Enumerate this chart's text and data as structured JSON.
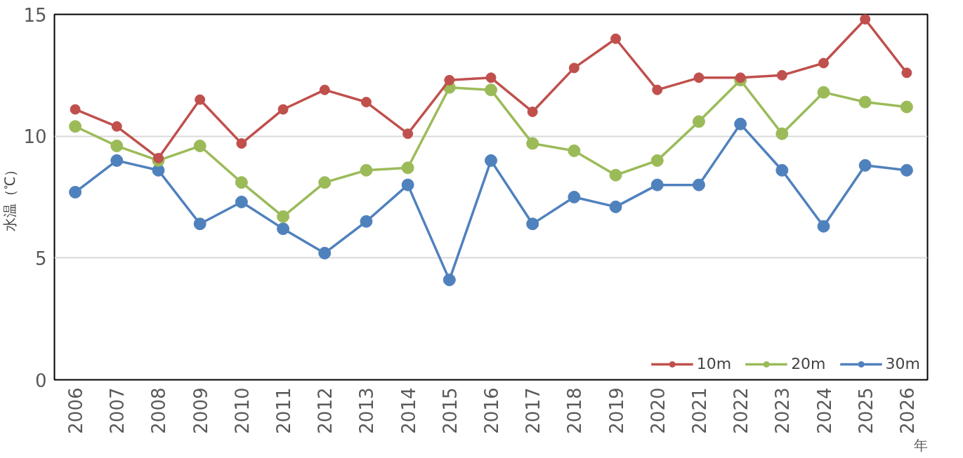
{
  "chart_data": {
    "type": "line",
    "ylabel": "水温（℃）",
    "xlabel": "年",
    "categories": [
      "2006",
      "2007",
      "2008",
      "2009",
      "2010",
      "2011",
      "2012",
      "2013",
      "2014",
      "2015",
      "2016",
      "2017",
      "2018",
      "2019",
      "2020",
      "2021",
      "2022",
      "2023",
      "2024",
      "2025",
      "2026"
    ],
    "series": [
      {
        "name": "10m",
        "color": "#c0504d",
        "values": [
          11.1,
          10.4,
          9.1,
          11.5,
          9.7,
          11.1,
          11.9,
          11.4,
          10.1,
          12.3,
          12.4,
          11.0,
          12.8,
          14.0,
          11.9,
          12.4,
          12.4,
          12.5,
          13.0,
          14.8,
          12.6
        ]
      },
      {
        "name": "20m",
        "color": "#9bbb59",
        "values": [
          10.4,
          9.6,
          9.0,
          9.6,
          8.1,
          6.7,
          8.1,
          8.6,
          8.7,
          12.0,
          11.9,
          9.7,
          9.4,
          8.4,
          9.0,
          10.6,
          12.3,
          10.1,
          11.8,
          11.4,
          11.2
        ]
      },
      {
        "name": "30m",
        "color": "#4f81bd",
        "values": [
          7.7,
          9.0,
          8.6,
          6.4,
          7.3,
          6.2,
          5.2,
          6.5,
          8.0,
          4.1,
          9.0,
          6.4,
          7.5,
          7.1,
          8.0,
          8.0,
          10.5,
          8.6,
          6.3,
          8.8,
          8.6
        ]
      }
    ],
    "ylim": [
      0,
      15
    ],
    "yticks": [
      0,
      5,
      10,
      15
    ],
    "grid": "y",
    "legend": "bottom right",
    "marker": "circle",
    "line_style": "solid"
  }
}
